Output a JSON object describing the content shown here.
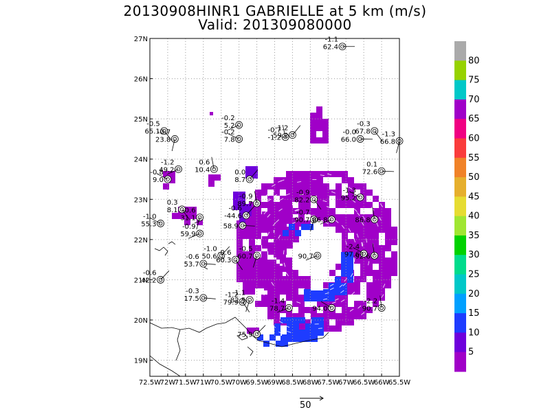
{
  "title_line1": "20130908HINR1 GABRIELLE at 5 km (m/s)",
  "title_line2": "Valid: 201309080000",
  "colors": {
    "background": "#ffffff",
    "grid": "#9a9a9a",
    "coastline": "#000000",
    "vector": "#ffffff"
  },
  "map": {
    "projection": "lat-lon",
    "lon_range": [
      -72.5,
      -65.5
    ],
    "lat_range": [
      18.6,
      27.0
    ],
    "grid": "dotted",
    "lon_ticks": [
      "72.5W",
      "72W",
      "71.5W",
      "71W",
      "70.5W",
      "70W",
      "69.5W",
      "69W",
      "68.5W",
      "68W",
      "67.5W",
      "67W",
      "66.5W",
      "66W",
      "65.5W"
    ],
    "lat_ticks": [
      "19N",
      "20N",
      "21N",
      "22N",
      "23N",
      "24N",
      "25N",
      "26N",
      "27N"
    ]
  },
  "colorbar": {
    "labels": [
      "5",
      "10",
      "15",
      "20",
      "25",
      "30",
      "35",
      "40",
      "45",
      "50",
      "55",
      "60",
      "65",
      "70",
      "75",
      "80"
    ],
    "colors": [
      "#a000c8",
      "#6e00dc",
      "#1e3cff",
      "#00a0ff",
      "#00c8c8",
      "#00dc8c",
      "#00d200",
      "#a0e632",
      "#e6dc32",
      "#e6af2d",
      "#f08228",
      "#fa3c3c",
      "#f00082",
      "#a000c8",
      "#00c8c8",
      "#96d200",
      "#aaaaaa"
    ]
  },
  "stations": [
    {
      "lon": -67.1,
      "lat": 26.8,
      "t1": "-1.1",
      "t2": "62.4"
    },
    {
      "lon": -72.1,
      "lat": 24.7,
      "t1": "-0.5",
      "t2": "65.1"
    },
    {
      "lon": -71.8,
      "lat": 24.5,
      "t1": "-0.7",
      "t2": "23.8"
    },
    {
      "lon": -70.0,
      "lat": 24.85,
      "t1": "-0.2",
      "t2": "5.2"
    },
    {
      "lon": -70.0,
      "lat": 24.5,
      "t1": "-0.2",
      "t2": "7.8"
    },
    {
      "lon": -68.7,
      "lat": 24.55,
      "t1": "-0.7",
      "t2": "-1.2"
    },
    {
      "lon": -68.5,
      "lat": 24.6,
      "t1": "-1.2",
      "t2": "59.2"
    },
    {
      "lon": -66.6,
      "lat": 24.5,
      "t1": "-0.0",
      "t2": "66.0"
    },
    {
      "lon": -66.2,
      "lat": 24.7,
      "t1": "-0.3",
      "t2": "67.8"
    },
    {
      "lon": -65.5,
      "lat": 24.45,
      "t1": "-1.3",
      "t2": "66.8"
    },
    {
      "lon": -71.7,
      "lat": 23.75,
      "t1": "-1.2",
      "t2": "49.2"
    },
    {
      "lon": -72.0,
      "lat": 23.5,
      "t1": "-0.8",
      "t2": "9.0"
    },
    {
      "lon": -70.7,
      "lat": 23.75,
      "t1": "0.6",
      "t2": "10.4"
    },
    {
      "lon": -69.7,
      "lat": 23.5,
      "t1": "0.0",
      "t2": "8.7"
    },
    {
      "lon": -66.0,
      "lat": 23.7,
      "t1": "0.1",
      "t2": "72.6"
    },
    {
      "lon": -71.6,
      "lat": 22.75,
      "t1": "0.3",
      "t2": "8.1"
    },
    {
      "lon": -71.1,
      "lat": 22.55,
      "t1": "-0.6",
      "t2": "31.1"
    },
    {
      "lon": -71.1,
      "lat": 22.15,
      "t1": "-0.9",
      "t2": "59.9"
    },
    {
      "lon": -72.2,
      "lat": 22.4,
      "t1": "-1.0",
      "t2": "55.3"
    },
    {
      "lon": -69.5,
      "lat": 22.9,
      "t1": "-0.9",
      "t2": "89.7"
    },
    {
      "lon": -69.8,
      "lat": 22.6,
      "t1": "-0.6",
      "t2": "-44.6"
    },
    {
      "lon": -69.9,
      "lat": 22.35,
      "t1": "",
      "t2": "58.9"
    },
    {
      "lon": -67.9,
      "lat": 23.0,
      "t1": "-0.9",
      "t2": "82.2"
    },
    {
      "lon": -67.9,
      "lat": 22.5,
      "t1": "-0.7",
      "t2": "90.7"
    },
    {
      "lon": -67.4,
      "lat": 22.5,
      "t1": "",
      "t2": "86.8"
    },
    {
      "lon": -66.6,
      "lat": 23.05,
      "t1": "-1.3",
      "t2": "95.2"
    },
    {
      "lon": -66.2,
      "lat": 22.5,
      "t1": "",
      "t2": "86.8"
    },
    {
      "lon": -70.5,
      "lat": 21.6,
      "t1": "-1.0",
      "t2": "50.6"
    },
    {
      "lon": -71.0,
      "lat": 21.4,
      "t1": "-0.6",
      "t2": "53.7"
    },
    {
      "lon": -70.1,
      "lat": 21.5,
      "t1": "-0.6",
      "t2": "60.3"
    },
    {
      "lon": -69.5,
      "lat": 21.6,
      "t1": "-0.5",
      "t2": "60.7"
    },
    {
      "lon": -67.8,
      "lat": 21.6,
      "t1": "",
      "t2": "90.7"
    },
    {
      "lon": -66.5,
      "lat": 21.65,
      "t1": "-2.4",
      "t2": "97.6"
    },
    {
      "lon": -66.2,
      "lat": 21.6,
      "t1": "",
      "t2": "92.6"
    },
    {
      "lon": -72.2,
      "lat": 21.0,
      "t1": "-0.6",
      "t2": "42.2"
    },
    {
      "lon": -71.0,
      "lat": 20.55,
      "t1": "-0.3",
      "t2": "17.5"
    },
    {
      "lon": -69.9,
      "lat": 20.45,
      "t1": "-1.2",
      "t2": "79.9"
    },
    {
      "lon": -69.7,
      "lat": 20.5,
      "t1": "-1.1",
      "t2": "82.5"
    },
    {
      "lon": -68.6,
      "lat": 20.3,
      "t1": "-1.4",
      "t2": "78.7"
    },
    {
      "lon": -67.4,
      "lat": 20.3,
      "t1": "",
      "t2": "94.0"
    },
    {
      "lon": -66.0,
      "lat": 20.3,
      "t1": "-2.2",
      "t2": "90.7"
    },
    {
      "lon": -69.5,
      "lat": 19.65,
      "t1": "",
      "t2": "75.9"
    }
  ],
  "reference_vector": {
    "label": "50"
  }
}
